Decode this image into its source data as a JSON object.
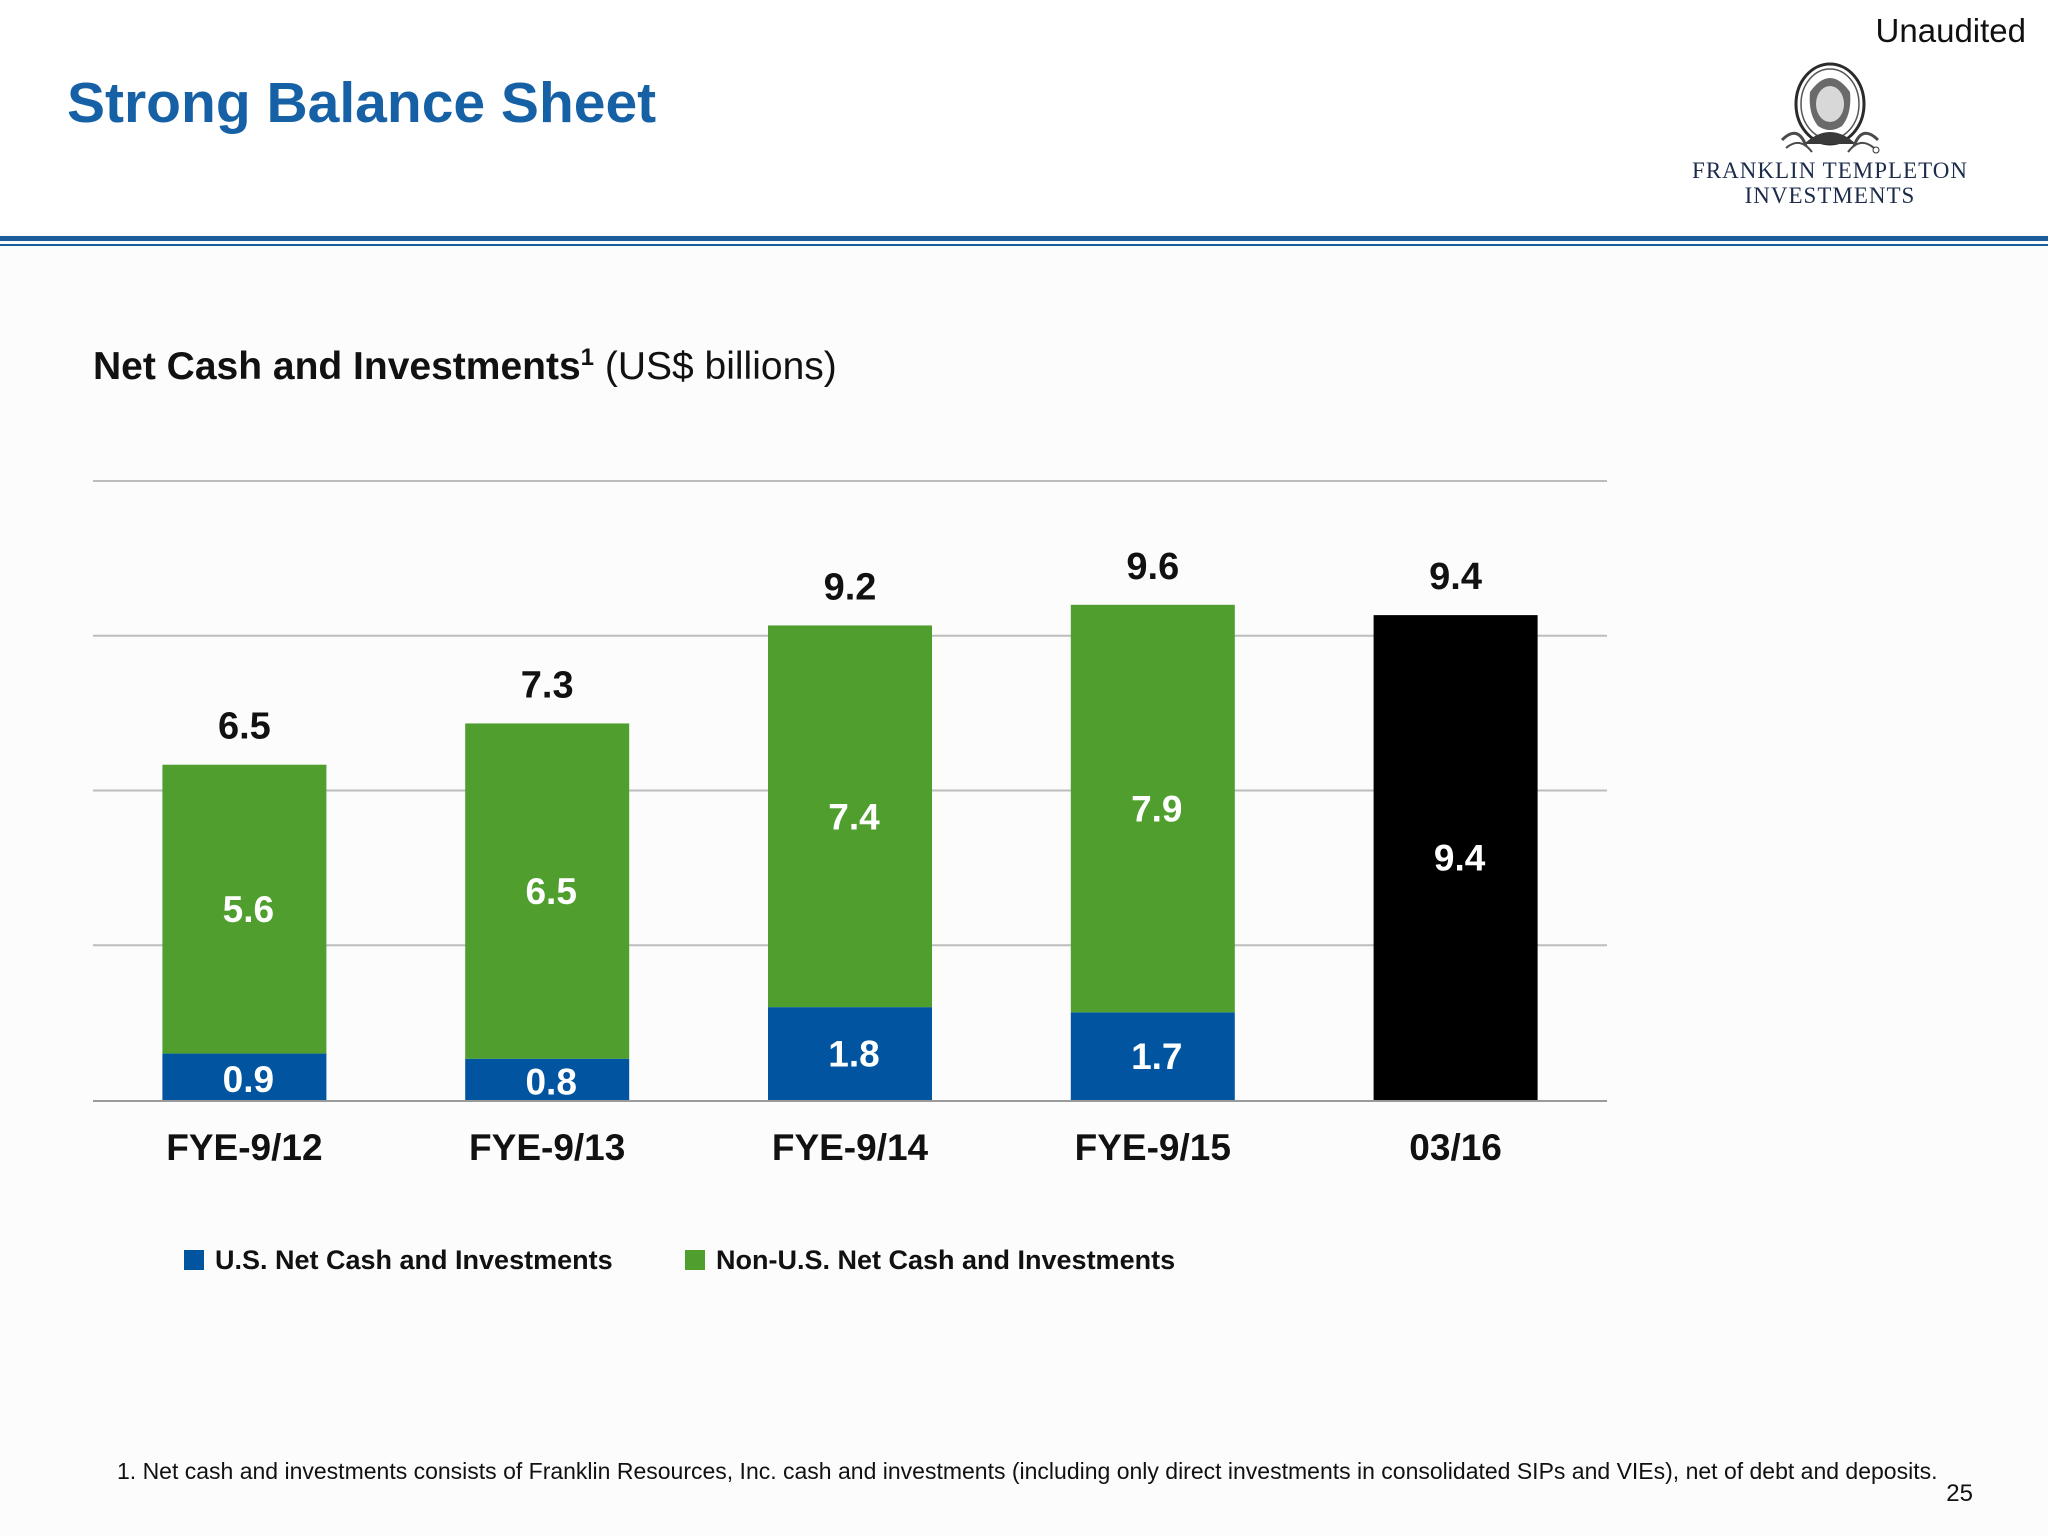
{
  "header": {
    "status_label": "Unaudited",
    "title": "Strong Balance Sheet",
    "logo_line1": "FRANKLIN TEMPLETON",
    "logo_line2": "INVESTMENTS"
  },
  "subtitle": {
    "bold_text": "Net Cash and Investments",
    "superscript": "1",
    "unit_text": "(US$ billions)"
  },
  "chart_data": {
    "type": "bar",
    "stacked": true,
    "title": "Net Cash and Investments",
    "unit": "US$ billions",
    "categories": [
      "FYE-9/12",
      "FYE-9/13",
      "FYE-9/14",
      "FYE-9/15",
      "03/16"
    ],
    "series": [
      {
        "name": "U.S. Net Cash and Investments",
        "values": [
          0.9,
          0.8,
          1.8,
          1.7,
          null
        ],
        "color": "#0054a0"
      },
      {
        "name": "Non-U.S. Net Cash and Investments",
        "values": [
          5.6,
          6.5,
          7.4,
          7.9,
          null
        ],
        "color": "#4f9e2e"
      },
      {
        "values": [
          null,
          null,
          null,
          null,
          9.4
        ],
        "color": "#000000"
      }
    ],
    "totals": [
      6.5,
      7.3,
      9.2,
      9.6,
      9.4
    ],
    "ylim": [
      0,
      12
    ],
    "grid": true,
    "y_axis_labels_shown": false,
    "legend_position": "bottom-left"
  },
  "legend": [
    {
      "label": "U.S. Net Cash and Investments",
      "color": "#0054a0"
    },
    {
      "label": "Non-U.S. Net Cash and Investments",
      "color": "#4f9e2e"
    }
  ],
  "footnote": "1.  Net cash and investments consists of Franklin Resources, Inc. cash and investments (including only direct investments in consolidated SIPs and VIEs), net of debt and deposits.",
  "page_number": "25",
  "colors": {
    "title_blue": "#1661a6",
    "rule_blue": "#1b5c9c",
    "gridline": "#bdbdbd",
    "axis": "#9a9a9a"
  }
}
